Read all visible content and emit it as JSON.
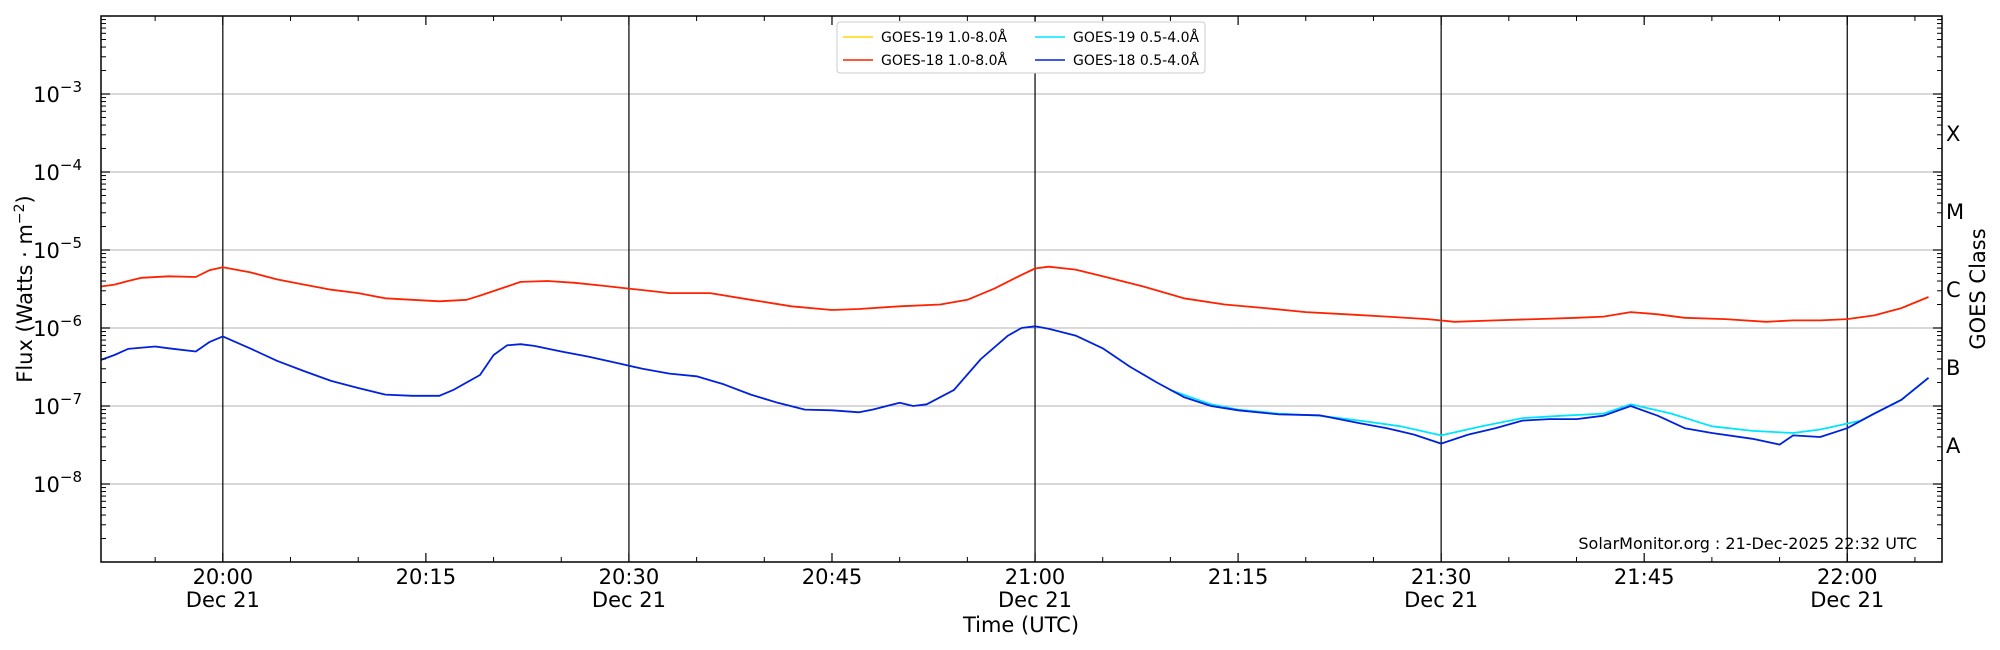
{
  "chart_data": {
    "type": "line",
    "xlabel": "Time (UTC)",
    "ylabel_main": "Flux (Watts · m",
    "ylabel_sup": "−2",
    "ylabel_close": ")",
    "right_label": "GOES Class",
    "watermark": "SolarMonitor.org : 21-Dec-2025 22:32 UTC",
    "y_scale": "log",
    "ylim": [
      1e-09,
      0.01
    ],
    "xlim": [
      "19:51",
      "22:07"
    ],
    "x_ticks": [
      {
        "t": "20:00",
        "line1": "20:00",
        "line2": "Dec 21"
      },
      {
        "t": "20:15",
        "line1": "20:15",
        "line2": ""
      },
      {
        "t": "20:30",
        "line1": "20:30",
        "line2": "Dec 21"
      },
      {
        "t": "20:45",
        "line1": "20:45",
        "line2": ""
      },
      {
        "t": "21:00",
        "line1": "21:00",
        "line2": "Dec 21"
      },
      {
        "t": "21:15",
        "line1": "21:15",
        "line2": ""
      },
      {
        "t": "21:30",
        "line1": "21:30",
        "line2": "Dec 21"
      },
      {
        "t": "21:45",
        "line1": "21:45",
        "line2": ""
      },
      {
        "t": "22:00",
        "line1": "22:00",
        "line2": "Dec 21"
      }
    ],
    "y_ticks": [
      {
        "exp": -8,
        "base": "10",
        "sup": "−8"
      },
      {
        "exp": -7,
        "base": "10",
        "sup": "−7"
      },
      {
        "exp": -6,
        "base": "10",
        "sup": "−6"
      },
      {
        "exp": -5,
        "base": "10",
        "sup": "−5"
      },
      {
        "exp": -4,
        "base": "10",
        "sup": "−4"
      },
      {
        "exp": -3,
        "base": "10",
        "sup": "−3"
      }
    ],
    "vertical_lines": [
      "20:00",
      "20:30",
      "21:00",
      "21:30",
      "22:00"
    ],
    "goes_classes": [
      {
        "label": "A",
        "exp": -7.5
      },
      {
        "label": "B",
        "exp": -6.5
      },
      {
        "label": "C",
        "exp": -5.5
      },
      {
        "label": "M",
        "exp": -4.5
      },
      {
        "label": "X",
        "exp": -3.5
      }
    ],
    "legend_position": "upper center",
    "series": [
      {
        "name": "GOES-19 1.0-8.0Å",
        "color": "#ffd700",
        "x": [],
        "y": []
      },
      {
        "name": "GOES-19 0.5-4.0Å",
        "color": "#00e5ff",
        "x": [
          "21:10",
          "21:13",
          "21:15",
          "21:18",
          "21:21",
          "21:24",
          "21:27",
          "21:30",
          "21:33",
          "21:36",
          "21:39",
          "21:42",
          "21:44",
          "21:47",
          "21:50",
          "21:53",
          "21:56",
          "21:58",
          "22:01",
          "22:04",
          "22:06"
        ],
        "y": [
          1.6e-07,
          1.05e-07,
          9e-08,
          8e-08,
          7.5e-08,
          6.5e-08,
          5.5e-08,
          4.2e-08,
          5.5e-08,
          7e-08,
          7.5e-08,
          8e-08,
          1.05e-07,
          8e-08,
          5.5e-08,
          4.8e-08,
          4.5e-08,
          5e-08,
          6.5e-08,
          1.2e-07,
          2.3e-07
        ]
      },
      {
        "name": "GOES-18 1.0-8.0Å",
        "color": "#ff2200",
        "x": [
          "19:51",
          "19:52",
          "19:53",
          "19:54",
          "19:56",
          "19:58",
          "19:59",
          "20:00",
          "20:02",
          "20:04",
          "20:06",
          "20:08",
          "20:10",
          "20:12",
          "20:14",
          "20:16",
          "20:18",
          "20:19",
          "20:21",
          "20:22",
          "20:24",
          "20:26",
          "20:28",
          "20:30",
          "20:33",
          "20:36",
          "20:39",
          "20:42",
          "20:45",
          "20:47",
          "20:50",
          "20:53",
          "20:55",
          "20:57",
          "20:59",
          "21:00",
          "21:01",
          "21:03",
          "21:05",
          "21:08",
          "21:11",
          "21:14",
          "21:17",
          "21:20",
          "21:23",
          "21:26",
          "21:29",
          "21:31",
          "21:34",
          "21:37",
          "21:40",
          "21:42",
          "21:44",
          "21:46",
          "21:48",
          "21:51",
          "21:54",
          "21:56",
          "21:58",
          "22:00",
          "22:02",
          "22:04",
          "22:06"
        ],
        "y": [
          3.4e-06,
          3.6e-06,
          4e-06,
          4.4e-06,
          4.6e-06,
          4.5e-06,
          5.5e-06,
          6e-06,
          5.2e-06,
          4.2e-06,
          3.6e-06,
          3.1e-06,
          2.8e-06,
          2.4e-06,
          2.3e-06,
          2.2e-06,
          2.3e-06,
          2.6e-06,
          3.4e-06,
          3.9e-06,
          4e-06,
          3.8e-06,
          3.5e-06,
          3.2e-06,
          2.8e-06,
          2.8e-06,
          2.3e-06,
          1.9e-06,
          1.7e-06,
          1.75e-06,
          1.9e-06,
          2e-06,
          2.3e-06,
          3.2e-06,
          4.8e-06,
          5.8e-06,
          6.1e-06,
          5.6e-06,
          4.6e-06,
          3.4e-06,
          2.4e-06,
          2e-06,
          1.8e-06,
          1.6e-06,
          1.5e-06,
          1.4e-06,
          1.3e-06,
          1.2e-06,
          1.25e-06,
          1.3e-06,
          1.35e-06,
          1.4e-06,
          1.6e-06,
          1.5e-06,
          1.35e-06,
          1.3e-06,
          1.2e-06,
          1.25e-06,
          1.25e-06,
          1.3e-06,
          1.45e-06,
          1.8e-06,
          2.5e-06
        ]
      },
      {
        "name": "GOES-18 0.5-4.0Å",
        "color": "#0022dd",
        "x": [
          "19:51",
          "19:52",
          "19:53",
          "19:55",
          "19:56",
          "19:58",
          "19:59",
          "20:00",
          "20:02",
          "20:04",
          "20:06",
          "20:08",
          "20:10",
          "20:12",
          "20:14",
          "20:16",
          "20:17",
          "20:19",
          "20:20",
          "20:21",
          "20:22",
          "20:23",
          "20:25",
          "20:27",
          "20:29",
          "20:31",
          "20:33",
          "20:35",
          "20:37",
          "20:39",
          "20:41",
          "20:43",
          "20:45",
          "20:47",
          "20:48",
          "20:50",
          "20:51",
          "20:52",
          "20:54",
          "20:56",
          "20:58",
          "20:59",
          "21:00",
          "21:01",
          "21:03",
          "21:05",
          "21:07",
          "21:09",
          "21:11",
          "21:13",
          "21:15",
          "21:18",
          "21:21",
          "21:24",
          "21:26",
          "21:28",
          "21:30",
          "21:32",
          "21:34",
          "21:36",
          "21:38",
          "21:40",
          "21:42",
          "21:44",
          "21:46",
          "21:48",
          "21:50",
          "21:53",
          "21:55",
          "21:56",
          "21:58",
          "22:00",
          "22:02",
          "22:04",
          "22:06"
        ],
        "y": [
          3.9e-07,
          4.5e-07,
          5.4e-07,
          5.8e-07,
          5.5e-07,
          5e-07,
          6.6e-07,
          7.8e-07,
          5.5e-07,
          3.8e-07,
          2.8e-07,
          2.1e-07,
          1.7e-07,
          1.4e-07,
          1.35e-07,
          1.35e-07,
          1.6e-07,
          2.5e-07,
          4.5e-07,
          6e-07,
          6.2e-07,
          5.9e-07,
          5e-07,
          4.3e-07,
          3.6e-07,
          3e-07,
          2.6e-07,
          2.4e-07,
          1.9e-07,
          1.4e-07,
          1.1e-07,
          9e-08,
          8.8e-08,
          8.3e-08,
          9e-08,
          1.1e-07,
          1e-07,
          1.05e-07,
          1.6e-07,
          4e-07,
          8e-07,
          1e-06,
          1.05e-06,
          9.8e-07,
          8e-07,
          5.5e-07,
          3.2e-07,
          2e-07,
          1.3e-07,
          1e-07,
          8.8e-08,
          7.8e-08,
          7.6e-08,
          6e-08,
          5.2e-08,
          4.3e-08,
          3.3e-08,
          4.3e-08,
          5.2e-08,
          6.5e-08,
          6.8e-08,
          6.8e-08,
          7.5e-08,
          1e-07,
          7.5e-08,
          5.2e-08,
          4.5e-08,
          3.8e-08,
          3.2e-08,
          4.2e-08,
          4e-08,
          5.2e-08,
          8e-08,
          1.2e-07,
          2.3e-07
        ]
      }
    ]
  }
}
